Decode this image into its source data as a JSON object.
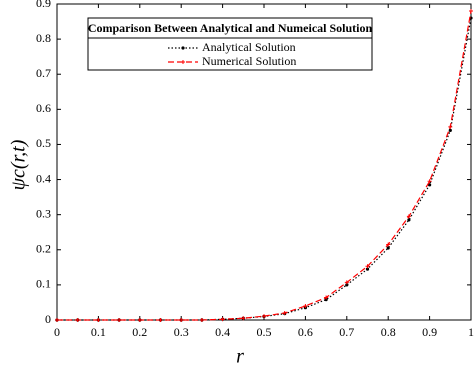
{
  "chart_data": {
    "type": "line",
    "legend_title": "Comparison Between Analytical and Numeical Solution",
    "xlabel": "r",
    "ylabel": "ψc(r,t)",
    "x": [
      0,
      0.05,
      0.1,
      0.15,
      0.2,
      0.25,
      0.3,
      0.35,
      0.4,
      0.45,
      0.5,
      0.55,
      0.6,
      0.65,
      0.7,
      0.75,
      0.8,
      0.85,
      0.9,
      0.95,
      1
    ],
    "series": [
      {
        "name": "Analytical Solution",
        "color": "#000000",
        "values": [
          0,
          0,
          0,
          0,
          0,
          0,
          0,
          0,
          0.002,
          0.005,
          0.01,
          0.018,
          0.035,
          0.058,
          0.1,
          0.145,
          0.205,
          0.285,
          0.385,
          0.54,
          0.86
        ]
      },
      {
        "name": "Numerical Solution",
        "color": "#ff0000",
        "values": [
          0,
          0,
          0,
          0,
          0,
          0,
          0,
          0,
          0.002,
          0.005,
          0.011,
          0.02,
          0.04,
          0.064,
          0.107,
          0.153,
          0.215,
          0.295,
          0.395,
          0.55,
          0.88
        ]
      }
    ],
    "xlim": [
      0,
      1
    ],
    "xticks": [
      0,
      0.1,
      0.2,
      0.3,
      0.4,
      0.5,
      0.6,
      0.7,
      0.8,
      0.9,
      1
    ],
    "ylim": [
      0,
      0.9
    ],
    "yticks": [
      0,
      0.1,
      0.2,
      0.3,
      0.4,
      0.5,
      0.6,
      0.7,
      0.8,
      0.9
    ],
    "legend": "upper left",
    "grid": false
  }
}
